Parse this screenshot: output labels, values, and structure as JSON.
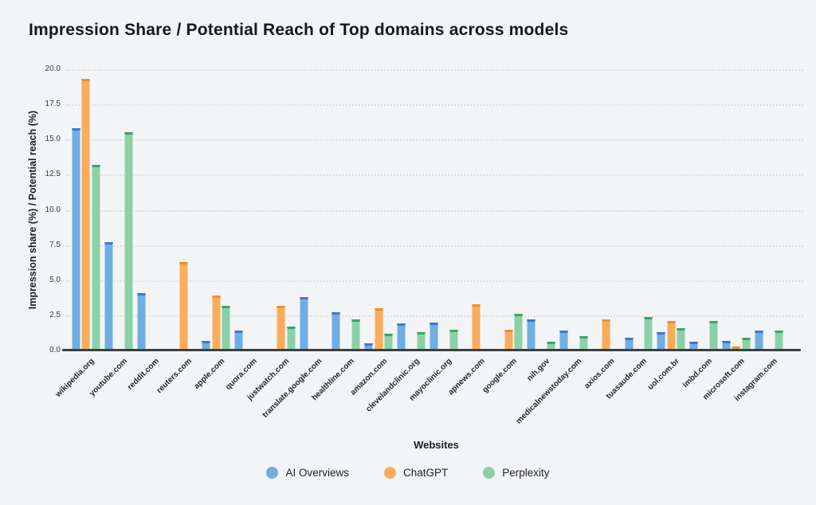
{
  "title": "Impression Share / Potential Reach of Top domains across models",
  "chart_data": {
    "type": "bar",
    "title": "Impression Share / Potential Reach of Top domains across models",
    "xlabel": "Websites",
    "ylabel": "Impression share (%) / Potential reach (%)",
    "ylim": [
      0,
      20
    ],
    "yticks": [
      0,
      2.5,
      5,
      7.5,
      10,
      12.5,
      15,
      17.5,
      20
    ],
    "grid": "dotted-horizontal",
    "legend_position": "bottom-center",
    "categories": [
      "wikipedia.org",
      "youtube.com",
      "reddit.com",
      "reuters.com",
      "apple.com",
      "quora.com",
      "justwatch.com",
      "translate.google.com",
      "healthline.com",
      "amazon.com",
      "clevelandclinic.org",
      "mayoclinic.org",
      "apnews.com",
      "google.com",
      "nih.gov",
      "medicalnewstoday.com",
      "axios.com",
      "tuasaude.com",
      "uol.com.br",
      "imbd.com",
      "microsoft.com",
      "instagram.com"
    ],
    "series": [
      {
        "name": "AI Overviews",
        "fill_color": "#6FAEE2",
        "cap_color": "#3D76D4",
        "values": [
          15.8,
          7.7,
          4.1,
          0,
          0.7,
          1.4,
          0,
          3.8,
          2.7,
          0.5,
          1.9,
          2.0,
          0,
          0,
          2.2,
          1.4,
          0,
          0.9,
          1.3,
          0.6,
          0.7,
          1.4
        ]
      },
      {
        "name": "ChatGPT",
        "fill_color": "#FAAB5C",
        "cap_color": "#F18D2D",
        "values": [
          19.3,
          0,
          0,
          6.3,
          3.9,
          0,
          3.2,
          0,
          0,
          3.0,
          0,
          0,
          3.3,
          1.5,
          0,
          0,
          2.2,
          0,
          2.1,
          0,
          0.3,
          0
        ]
      },
      {
        "name": "Perplexity",
        "fill_color": "#8BD0A6",
        "cap_color": "#3CA36C",
        "values": [
          13.2,
          15.5,
          0,
          0,
          3.2,
          0,
          1.7,
          0,
          2.2,
          1.2,
          1.3,
          1.5,
          0,
          2.6,
          0.6,
          1.0,
          0,
          2.4,
          1.6,
          2.1,
          0.9,
          1.4
        ]
      }
    ]
  }
}
